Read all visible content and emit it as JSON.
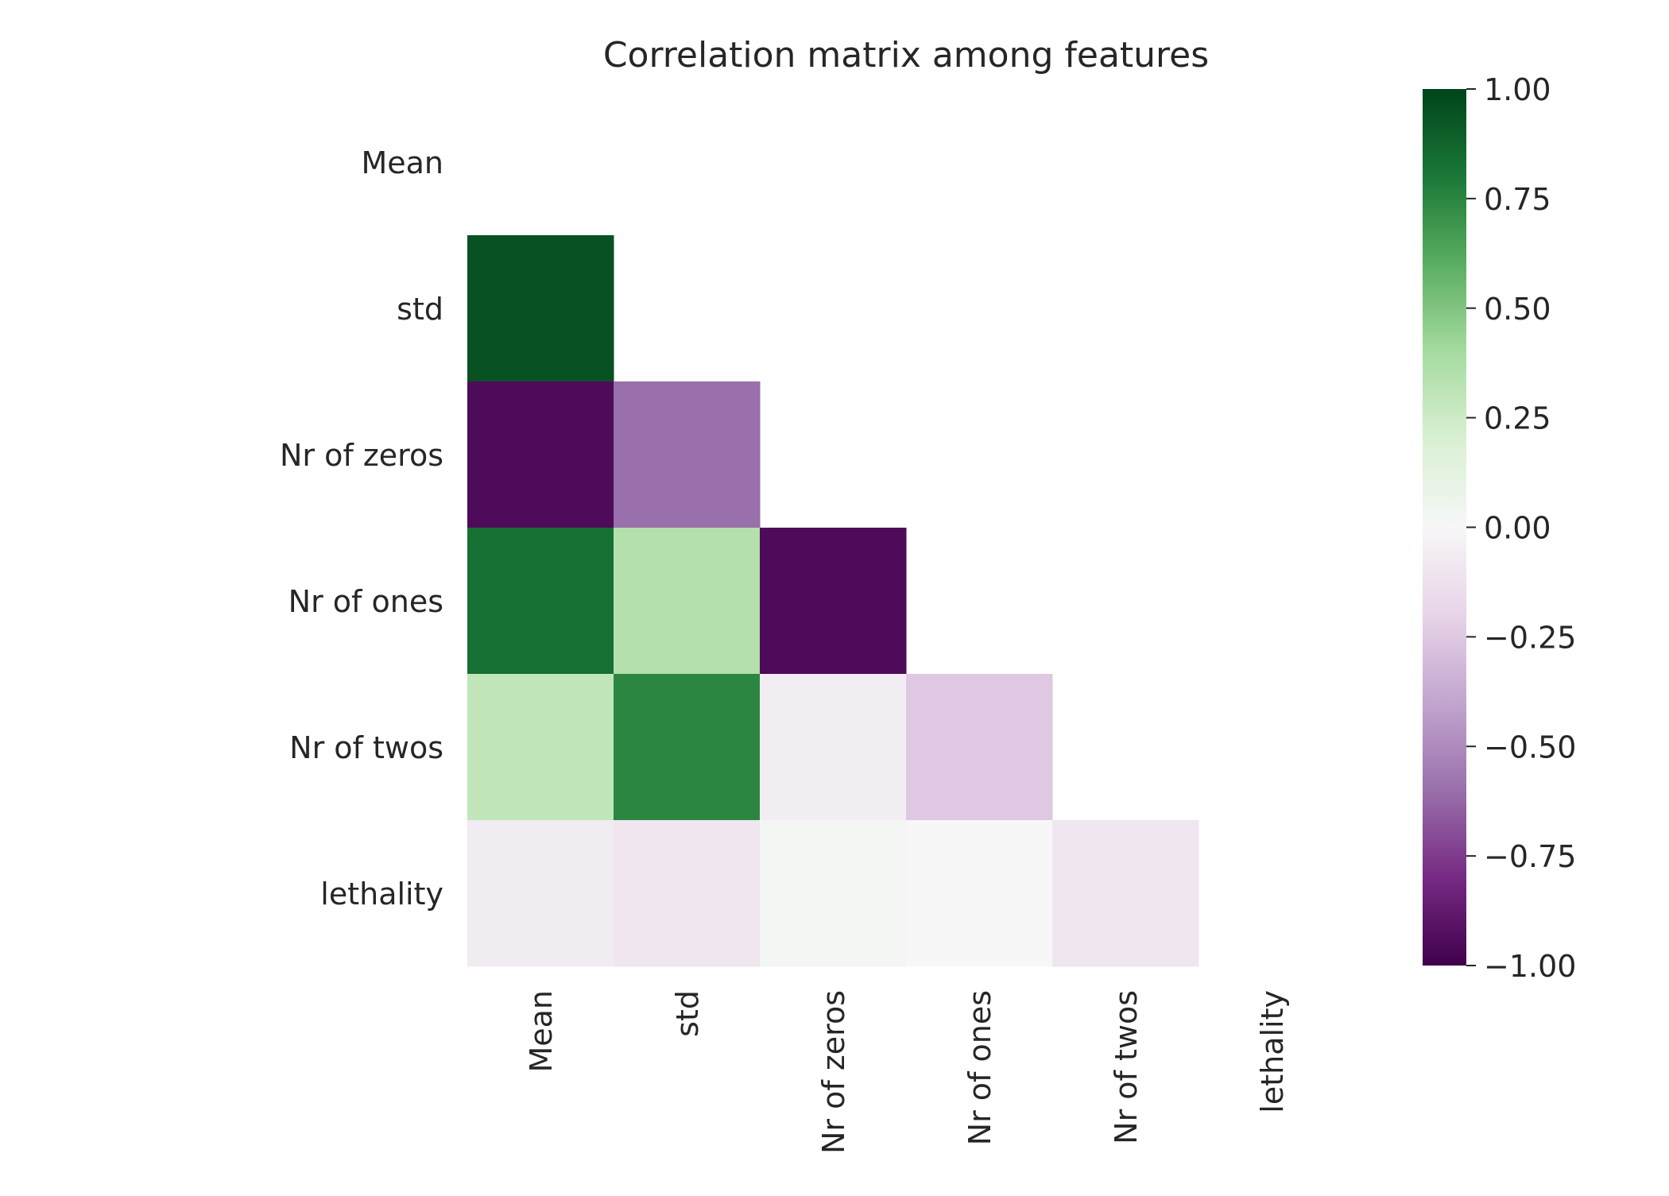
{
  "chart_data": {
    "type": "heatmap",
    "title": "Correlation matrix among features",
    "labels": [
      "Mean",
      "std",
      "Nr of zeros",
      "Nr of ones",
      "Nr of twos",
      "lethality"
    ],
    "mask": "upper-triangle-including-diagonal",
    "values": [
      [
        null,
        null,
        null,
        null,
        null,
        null
      ],
      [
        0.95,
        null,
        null,
        null,
        null,
        null
      ],
      [
        -0.95,
        -0.6,
        null,
        null,
        null,
        null
      ],
      [
        0.83,
        0.35,
        -0.95,
        null,
        null,
        null
      ],
      [
        0.3,
        0.75,
        -0.06,
        -0.25,
        null,
        null
      ],
      [
        -0.07,
        -0.1,
        0.03,
        0.0,
        -0.1,
        null
      ]
    ],
    "colorbar": {
      "colormap": "PRGn",
      "vmin": -1.0,
      "vmax": 1.0,
      "ticks": [
        1.0,
        0.75,
        0.5,
        0.25,
        0.0,
        -0.25,
        -0.5,
        -0.75,
        -1.0
      ],
      "tick_labels": [
        "1.00",
        "0.75",
        "0.50",
        "0.25",
        "0.00",
        "−0.25",
        "−0.50",
        "−0.75",
        "−1.00"
      ]
    },
    "grid": false
  }
}
